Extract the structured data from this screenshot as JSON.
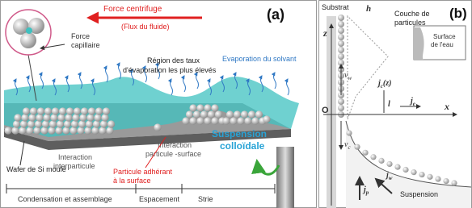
{
  "panel_a": {
    "tag": "(a)",
    "force_label": "Force  centrifuge",
    "flow_label": "(Flux du fluide)",
    "capillary": [
      "Force",
      "capillaire"
    ],
    "region": [
      "Région des taux",
      "d'évaporation les plus élevés"
    ],
    "evaporation": "Evaporation du solvant",
    "interparticle": [
      "Interaction",
      "interparticule"
    ],
    "particle_surface": [
      "Interaction",
      "particule -surface"
    ],
    "suspension": [
      "Suspension",
      "colloïdale"
    ],
    "wafer": "Wafer de Si moulé",
    "adhering": [
      "Particule adhérant",
      "à la surface"
    ],
    "zones": [
      "Condensation et assemblage",
      "Espacement",
      "Strie"
    ]
  },
  "panel_b": {
    "tag": "(b)",
    "substrate": "Substrat",
    "h": "h",
    "layer": [
      "Couche de",
      "particules"
    ],
    "water_surface": [
      "Surface",
      "de l'eau"
    ],
    "z": "z",
    "origin": "O",
    "x": "x",
    "vw": {
      "main": "v",
      "sub": "w"
    },
    "jc": {
      "main": "j",
      "sub": "c",
      "rest": "(z)"
    },
    "l": "l",
    "je": {
      "main": "j",
      "sub": "e"
    },
    "vc": {
      "main": "v",
      "sub": "c"
    },
    "jp": {
      "main": "j",
      "sub": "p"
    },
    "jw": {
      "main": "j",
      "sub": "w"
    },
    "suspension": "Suspension"
  }
}
